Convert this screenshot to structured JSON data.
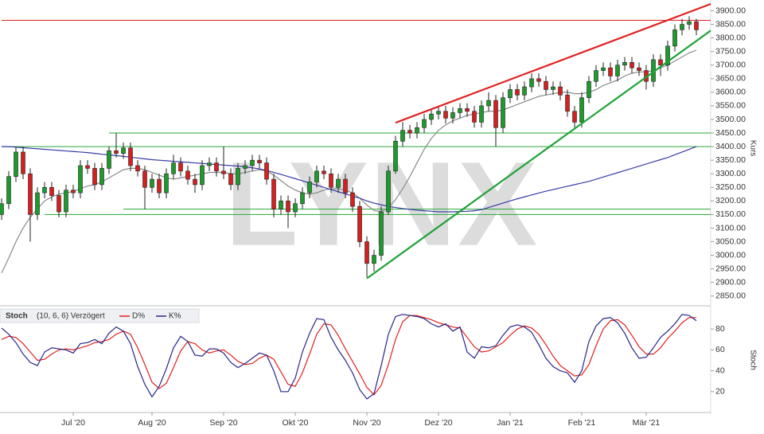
{
  "chart_data": [
    {
      "type": "candlestick",
      "ylabel": "Kurs",
      "watermark": "LYNX",
      "up_color": "#1d9a2c",
      "down_color": "#d42020",
      "ylim": [
        2820,
        3925
      ],
      "yticks": [
        {
          "value": 2850,
          "label": "2850.00"
        },
        {
          "value": 2900,
          "label": "2900.00"
        },
        {
          "value": 2950,
          "label": "2950.00"
        },
        {
          "value": 3000,
          "label": "3000.00"
        },
        {
          "value": 3050,
          "label": "3050.00"
        },
        {
          "value": 3100,
          "label": "3100.00"
        },
        {
          "value": 3150,
          "label": "3150.00"
        },
        {
          "value": 3200,
          "label": "3200.00"
        },
        {
          "value": 3250,
          "label": "3250.00"
        },
        {
          "value": 3300,
          "label": "3300.00"
        },
        {
          "value": 3350,
          "label": "3350.00"
        },
        {
          "value": 3400,
          "label": "3400.00"
        },
        {
          "value": 3450,
          "label": "3450.00"
        },
        {
          "value": 3500,
          "label": "3500.00"
        },
        {
          "value": 3550,
          "label": "3550.00"
        },
        {
          "value": 3600,
          "label": "3600.00"
        },
        {
          "value": 3650,
          "label": "3650.00"
        },
        {
          "value": 3700,
          "label": "3700.00"
        },
        {
          "value": 3750,
          "label": "3750.00"
        },
        {
          "value": 3800,
          "label": "3800.00"
        },
        {
          "value": 3850,
          "label": "3850.00"
        },
        {
          "value": 3900,
          "label": "3900.00"
        }
      ],
      "open": [
        3150,
        3190,
        3290,
        3380,
        3300,
        3150,
        3230,
        3250,
        3220,
        3160,
        3240,
        3230,
        3330,
        3320,
        3260,
        3320,
        3385,
        3375,
        3395,
        3330,
        3310,
        3250,
        3280,
        3230,
        3300,
        3340,
        3310,
        3280,
        3260,
        3330,
        3340,
        3310,
        3300,
        3260,
        3320,
        3330,
        3350,
        3340,
        3280,
        3170,
        3200,
        3160,
        3190,
        3230,
        3270,
        3310,
        3300,
        3250,
        3280,
        3230,
        3180,
        3050,
        2970,
        3000,
        3160,
        3310,
        3420,
        3460,
        3450,
        3470,
        3500,
        3520,
        3530,
        3505,
        3525,
        3540,
        3530,
        3490,
        3550,
        3570,
        3470,
        3580,
        3610,
        3590,
        3620,
        3650,
        3640,
        3610,
        3620,
        3590,
        3530,
        3490,
        3580,
        3640,
        3680,
        3690,
        3660,
        3700,
        3710,
        3690,
        3680,
        3640,
        3720,
        3700,
        3770,
        3830,
        3850,
        3860
      ],
      "high": [
        3210,
        3310,
        3400,
        3400,
        3320,
        3250,
        3270,
        3270,
        3240,
        3260,
        3260,
        3350,
        3350,
        3340,
        3340,
        3400,
        3450,
        3415,
        3415,
        3350,
        3330,
        3300,
        3300,
        3320,
        3370,
        3360,
        3330,
        3300,
        3350,
        3360,
        3360,
        3400,
        3320,
        3340,
        3350,
        3370,
        3370,
        3360,
        3300,
        3220,
        3220,
        3210,
        3250,
        3290,
        3330,
        3330,
        3320,
        3300,
        3300,
        3250,
        3200,
        3070,
        3020,
        3180,
        3330,
        3440,
        3490,
        3480,
        3490,
        3520,
        3540,
        3550,
        3550,
        3545,
        3560,
        3560,
        3550,
        3570,
        3600,
        3590,
        3600,
        3630,
        3630,
        3640,
        3670,
        3670,
        3660,
        3640,
        3640,
        3610,
        3550,
        3600,
        3660,
        3700,
        3710,
        3710,
        3720,
        3730,
        3730,
        3710,
        3700,
        3740,
        3740,
        3790,
        3850,
        3870,
        3880,
        3870
      ],
      "low": [
        3130,
        3170,
        3270,
        3280,
        3050,
        3130,
        3210,
        3200,
        3140,
        3140,
        3210,
        3210,
        3300,
        3240,
        3240,
        3300,
        3360,
        3355,
        3310,
        3290,
        3170,
        3230,
        3210,
        3210,
        3280,
        3290,
        3260,
        3230,
        3240,
        3310,
        3290,
        3280,
        3240,
        3240,
        3300,
        3310,
        3320,
        3260,
        3140,
        3150,
        3100,
        3140,
        3170,
        3210,
        3250,
        3280,
        3230,
        3230,
        3210,
        3160,
        3030,
        2920,
        2940,
        2980,
        3150,
        3300,
        3400,
        3430,
        3430,
        3450,
        3480,
        3500,
        3485,
        3485,
        3505,
        3510,
        3470,
        3470,
        3530,
        3400,
        3450,
        3560,
        3570,
        3570,
        3600,
        3620,
        3590,
        3590,
        3570,
        3510,
        3470,
        3470,
        3560,
        3620,
        3660,
        3640,
        3640,
        3680,
        3670,
        3660,
        3610,
        3620,
        3660,
        3680,
        3750,
        3810,
        3830,
        3810
      ],
      "close": [
        3190,
        3290,
        3380,
        3300,
        3150,
        3230,
        3250,
        3220,
        3160,
        3240,
        3230,
        3330,
        3320,
        3260,
        3320,
        3385,
        3375,
        3395,
        3330,
        3310,
        3250,
        3280,
        3230,
        3300,
        3340,
        3310,
        3280,
        3260,
        3330,
        3340,
        3310,
        3300,
        3260,
        3320,
        3330,
        3350,
        3340,
        3280,
        3170,
        3200,
        3160,
        3190,
        3230,
        3270,
        3310,
        3300,
        3250,
        3280,
        3230,
        3180,
        3050,
        2970,
        3000,
        3160,
        3310,
        3420,
        3460,
        3450,
        3470,
        3500,
        3520,
        3530,
        3505,
        3525,
        3540,
        3530,
        3490,
        3550,
        3570,
        3470,
        3580,
        3610,
        3590,
        3620,
        3650,
        3640,
        3610,
        3620,
        3590,
        3530,
        3490,
        3580,
        3640,
        3680,
        3690,
        3660,
        3700,
        3710,
        3690,
        3680,
        3640,
        3720,
        3700,
        3770,
        3830,
        3850,
        3860,
        3830
      ],
      "lines": [
        {
          "color": "#8a8a8a",
          "values": [
            2935,
            2990,
            3050,
            3100,
            3140,
            3170,
            3200,
            3215,
            3225,
            3230,
            3235,
            3245,
            3255,
            3260,
            3270,
            3285,
            3300,
            3315,
            3320,
            3320,
            3315,
            3305,
            3295,
            3285,
            3280,
            3285,
            3290,
            3295,
            3300,
            3305,
            3305,
            3305,
            3300,
            3300,
            3305,
            3310,
            3315,
            3310,
            3295,
            3275,
            3255,
            3240,
            3230,
            3225,
            3230,
            3240,
            3245,
            3245,
            3240,
            3230,
            3210,
            3185,
            3165,
            3160,
            3175,
            3205,
            3245,
            3290,
            3340,
            3390,
            3430,
            3460,
            3480,
            3495,
            3505,
            3515,
            3520,
            3525,
            3530,
            3530,
            3535,
            3545,
            3555,
            3565,
            3575,
            3585,
            3590,
            3595,
            3600,
            3600,
            3595,
            3595,
            3600,
            3610,
            3625,
            3635,
            3645,
            3660,
            3670,
            3675,
            3675,
            3680,
            3690,
            3700,
            3715,
            3730,
            3745,
            3755
          ]
        },
        {
          "color": "#3a3aa8",
          "values": [
            3400,
            3400,
            3398,
            3396,
            3394,
            3392,
            3390,
            3388,
            3386,
            3384,
            3382,
            3380,
            3378,
            3375,
            3372,
            3370,
            3367,
            3364,
            3361,
            3358,
            3355,
            3352,
            3350,
            3348,
            3346,
            3344,
            3342,
            3340,
            3338,
            3336,
            3334,
            3332,
            3330,
            3328,
            3326,
            3322,
            3318,
            3312,
            3305,
            3298,
            3290,
            3282,
            3274,
            3266,
            3258,
            3250,
            3242,
            3234,
            3226,
            3218,
            3210,
            3200,
            3192,
            3186,
            3180,
            3176,
            3172,
            3169,
            3166,
            3164,
            3162,
            3160,
            3160,
            3160,
            3161,
            3162,
            3164,
            3168,
            3176,
            3184,
            3192,
            3200,
            3208,
            3215,
            3222,
            3229,
            3236,
            3242,
            3248,
            3254,
            3260,
            3266,
            3272,
            3280,
            3288,
            3296,
            3304,
            3312,
            3320,
            3328,
            3336,
            3344,
            3352,
            3360,
            3370,
            3380,
            3390,
            3400
          ]
        }
      ],
      "levels": [
        {
          "value": 3865,
          "from_index": 0,
          "color": "#e02020"
        },
        {
          "value": 3450,
          "from_index": 15,
          "color": "#2aa83a"
        },
        {
          "value": 3400,
          "from_index": 0,
          "color": "#2aa83a"
        },
        {
          "value": 3170,
          "from_index": 17,
          "color": "#2aa83a"
        },
        {
          "value": 3150,
          "from_index": 6,
          "color": "#2aa83a"
        }
      ],
      "trendlines": [
        {
          "color": "#e02020",
          "from": {
            "index": 55,
            "value": 3488
          },
          "to": {
            "index": 99,
            "value": 3925
          }
        },
        {
          "color": "#1ea336",
          "from": {
            "index": 51,
            "value": 2915
          },
          "to": {
            "index": 99,
            "value": 3827
          }
        }
      ]
    },
    {
      "type": "line",
      "title": "Stoch",
      "subtitle": "(10, 6, 6) Verzögert",
      "ylabel": "Stoch",
      "ylim": [
        0,
        100
      ],
      "yticks": [
        20,
        40,
        60,
        80
      ],
      "categories": [
        null,
        null,
        null,
        null,
        null,
        null,
        null,
        null,
        null,
        null,
        "Jul '20",
        null,
        null,
        null,
        null,
        null,
        null,
        null,
        null,
        null,
        null,
        "Aug '20",
        null,
        null,
        null,
        null,
        null,
        null,
        null,
        null,
        null,
        "Sep '20",
        null,
        null,
        null,
        null,
        null,
        null,
        null,
        null,
        null,
        "Okt '20",
        null,
        null,
        null,
        null,
        null,
        null,
        null,
        null,
        null,
        "Nov '20",
        null,
        null,
        null,
        null,
        null,
        null,
        null,
        null,
        null,
        "Dez '20",
        null,
        null,
        null,
        null,
        null,
        null,
        null,
        null,
        null,
        "Jan '21",
        null,
        null,
        null,
        null,
        null,
        null,
        null,
        null,
        null,
        "Feb '21",
        null,
        null,
        null,
        null,
        null,
        null,
        null,
        null,
        "Mär '21",
        null,
        null,
        null,
        null,
        null,
        null,
        null
      ],
      "series": [
        {
          "name": "D%",
          "color": "#e02020",
          "values": [
            70,
            73,
            72,
            66,
            58,
            50,
            51,
            56,
            60,
            61,
            60,
            62,
            64,
            67,
            68,
            70,
            75,
            78,
            75,
            62,
            46,
            29,
            23,
            28,
            43,
            59,
            68,
            66,
            60,
            57,
            59,
            60,
            55,
            49,
            46,
            47,
            52,
            55,
            51,
            39,
            27,
            25,
            38,
            56,
            75,
            85,
            84,
            74,
            61,
            49,
            37,
            24,
            17,
            26,
            46,
            70,
            87,
            93,
            93,
            91,
            89,
            86,
            84,
            82,
            81,
            72,
            63,
            58,
            59,
            63,
            67,
            74,
            80,
            83,
            81,
            75,
            65,
            54,
            45,
            40,
            35,
            36,
            46,
            64,
            80,
            88,
            89,
            84,
            74,
            63,
            56,
            56,
            62,
            71,
            78,
            86,
            91,
            91
          ]
        },
        {
          "name": "K%",
          "color": "#26268a",
          "values": [
            81,
            75,
            67,
            56,
            48,
            45,
            58,
            62,
            61,
            60,
            57,
            66,
            67,
            70,
            66,
            76,
            82,
            78,
            66,
            44,
            27,
            15,
            25,
            42,
            62,
            73,
            68,
            55,
            54,
            61,
            61,
            57,
            48,
            43,
            47,
            52,
            57,
            55,
            40,
            20,
            20,
            33,
            58,
            76,
            90,
            89,
            72,
            60,
            50,
            38,
            22,
            13,
            18,
            45,
            75,
            92,
            94,
            93,
            92,
            90,
            85,
            82,
            85,
            78,
            82,
            58,
            52,
            63,
            62,
            64,
            74,
            82,
            84,
            82,
            77,
            65,
            52,
            44,
            40,
            38,
            29,
            40,
            68,
            83,
            90,
            91,
            86,
            76,
            62,
            52,
            53,
            62,
            72,
            78,
            85,
            94,
            93,
            88
          ]
        }
      ]
    }
  ]
}
